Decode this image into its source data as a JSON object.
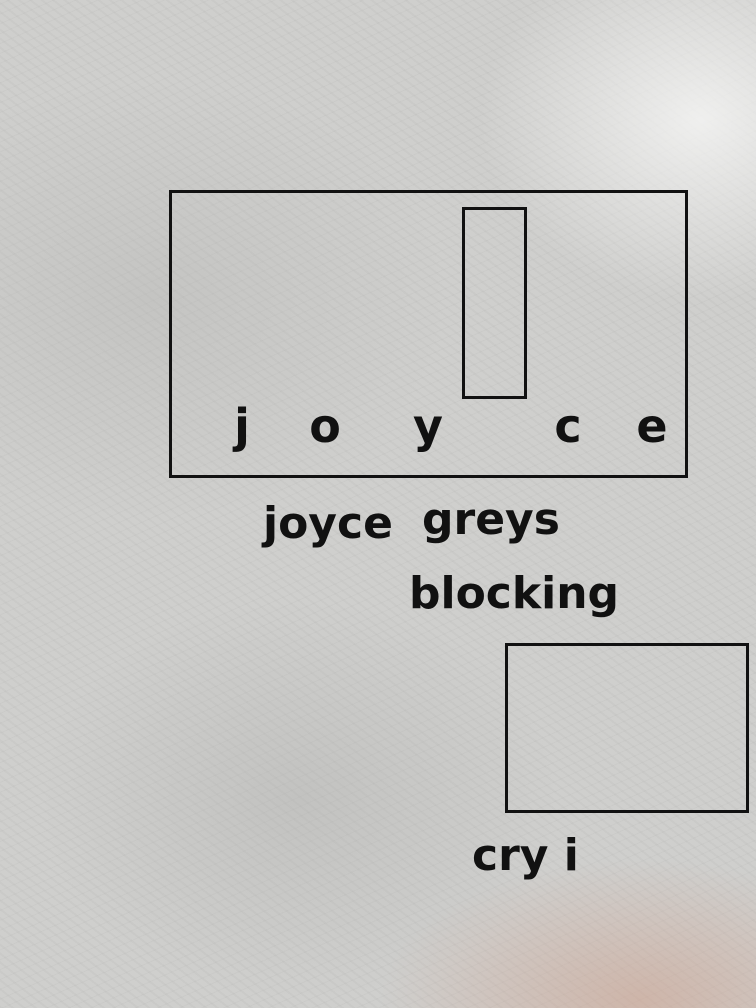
{
  "main_box": {
    "letters": [
      "j",
      "o",
      "y",
      "c",
      "e"
    ]
  },
  "words": {
    "joyce": "joyce",
    "greys": "greys",
    "blocking": "blocking",
    "cry": "cry i"
  },
  "colors": {
    "background": "#cfcfcd",
    "ink": "#111111"
  }
}
